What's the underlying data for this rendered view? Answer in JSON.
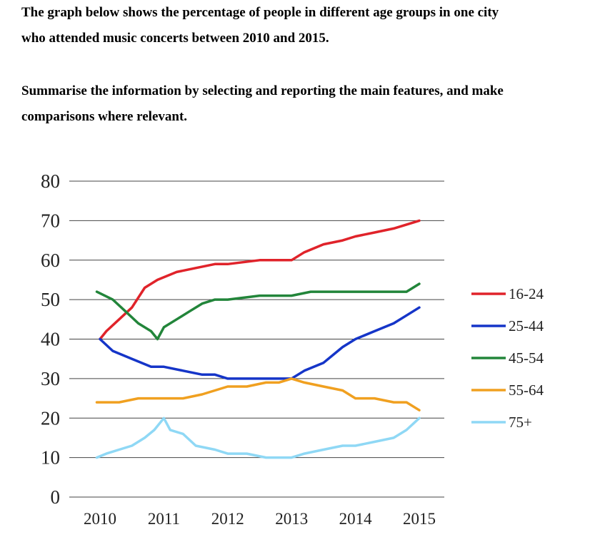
{
  "prompt": {
    "line1": "The graph below shows the percentage of people in different age groups in one city",
    "line2": "who attended music concerts between 2010 and 2015.",
    "line3": "Summarise the information by selecting and reporting the main features, and make",
    "line4": "comparisons where relevant."
  },
  "chart_data": {
    "type": "line",
    "title": "",
    "xlabel": "",
    "ylabel": "",
    "xlim": [
      2010,
      2015
    ],
    "ylim": [
      0,
      80
    ],
    "x_ticks": [
      "2010",
      "2011",
      "2012",
      "2013",
      "2014",
      "2015"
    ],
    "y_ticks": [
      "0",
      "10",
      "20",
      "30",
      "40",
      "50",
      "60",
      "70",
      "80"
    ],
    "grid": "horizontal",
    "legend_position": "right",
    "series": [
      {
        "name": "16-24",
        "color": "#e0232a",
        "points": [
          [
            2010.0,
            40
          ],
          [
            2010.1,
            42
          ],
          [
            2010.3,
            45
          ],
          [
            2010.5,
            48
          ],
          [
            2010.7,
            53
          ],
          [
            2010.9,
            55
          ],
          [
            2011.2,
            57
          ],
          [
            2011.5,
            58
          ],
          [
            2011.8,
            59
          ],
          [
            2012.0,
            59
          ],
          [
            2012.5,
            60
          ],
          [
            2012.8,
            60
          ],
          [
            2013.0,
            60
          ],
          [
            2013.2,
            62
          ],
          [
            2013.5,
            64
          ],
          [
            2013.8,
            65
          ],
          [
            2014.0,
            66
          ],
          [
            2014.3,
            67
          ],
          [
            2014.6,
            68
          ],
          [
            2014.8,
            69
          ],
          [
            2015.0,
            70
          ]
        ]
      },
      {
        "name": "25-44",
        "color": "#1535c8",
        "points": [
          [
            2010.0,
            40
          ],
          [
            2010.2,
            37
          ],
          [
            2010.5,
            35
          ],
          [
            2010.8,
            33
          ],
          [
            2011.0,
            33
          ],
          [
            2011.3,
            32
          ],
          [
            2011.6,
            31
          ],
          [
            2011.8,
            31
          ],
          [
            2012.0,
            30
          ],
          [
            2012.5,
            30
          ],
          [
            2012.8,
            30
          ],
          [
            2013.0,
            30
          ],
          [
            2013.2,
            32
          ],
          [
            2013.5,
            34
          ],
          [
            2013.8,
            38
          ],
          [
            2014.0,
            40
          ],
          [
            2014.3,
            42
          ],
          [
            2014.6,
            44
          ],
          [
            2014.8,
            46
          ],
          [
            2015.0,
            48
          ]
        ]
      },
      {
        "name": "45-54",
        "color": "#22853a",
        "points": [
          [
            2009.95,
            52
          ],
          [
            2010.2,
            50
          ],
          [
            2010.4,
            47
          ],
          [
            2010.6,
            44
          ],
          [
            2010.8,
            42
          ],
          [
            2010.9,
            40
          ],
          [
            2011.0,
            43
          ],
          [
            2011.2,
            45
          ],
          [
            2011.4,
            47
          ],
          [
            2011.6,
            49
          ],
          [
            2011.8,
            50
          ],
          [
            2012.0,
            50
          ],
          [
            2012.5,
            51
          ],
          [
            2013.0,
            51
          ],
          [
            2013.3,
            52
          ],
          [
            2013.6,
            52
          ],
          [
            2014.0,
            52
          ],
          [
            2014.3,
            52
          ],
          [
            2014.5,
            52
          ],
          [
            2014.8,
            52
          ],
          [
            2015.0,
            54
          ]
        ]
      },
      {
        "name": "55-64",
        "color": "#f0a020",
        "points": [
          [
            2009.95,
            24
          ],
          [
            2010.3,
            24
          ],
          [
            2010.6,
            25
          ],
          [
            2011.0,
            25
          ],
          [
            2011.3,
            25
          ],
          [
            2011.6,
            26
          ],
          [
            2011.8,
            27
          ],
          [
            2012.0,
            28
          ],
          [
            2012.3,
            28
          ],
          [
            2012.6,
            29
          ],
          [
            2012.8,
            29
          ],
          [
            2013.0,
            30
          ],
          [
            2013.2,
            29
          ],
          [
            2013.5,
            28
          ],
          [
            2013.8,
            27
          ],
          [
            2014.0,
            25
          ],
          [
            2014.3,
            25
          ],
          [
            2014.6,
            24
          ],
          [
            2014.8,
            24
          ],
          [
            2015.0,
            22
          ]
        ]
      },
      {
        "name": "75+",
        "color": "#8fd8f5",
        "points": [
          [
            2009.95,
            10
          ],
          [
            2010.1,
            11
          ],
          [
            2010.3,
            12
          ],
          [
            2010.5,
            13
          ],
          [
            2010.7,
            15
          ],
          [
            2010.85,
            17
          ],
          [
            2011.0,
            20
          ],
          [
            2011.1,
            17
          ],
          [
            2011.3,
            16
          ],
          [
            2011.5,
            13
          ],
          [
            2011.8,
            12
          ],
          [
            2012.0,
            11
          ],
          [
            2012.3,
            11
          ],
          [
            2012.6,
            10
          ],
          [
            2012.9,
            10
          ],
          [
            2013.0,
            10
          ],
          [
            2013.2,
            11
          ],
          [
            2013.5,
            12
          ],
          [
            2013.8,
            13
          ],
          [
            2014.0,
            13
          ],
          [
            2014.3,
            14
          ],
          [
            2014.6,
            15
          ],
          [
            2014.8,
            17
          ],
          [
            2015.0,
            20
          ]
        ]
      }
    ]
  }
}
